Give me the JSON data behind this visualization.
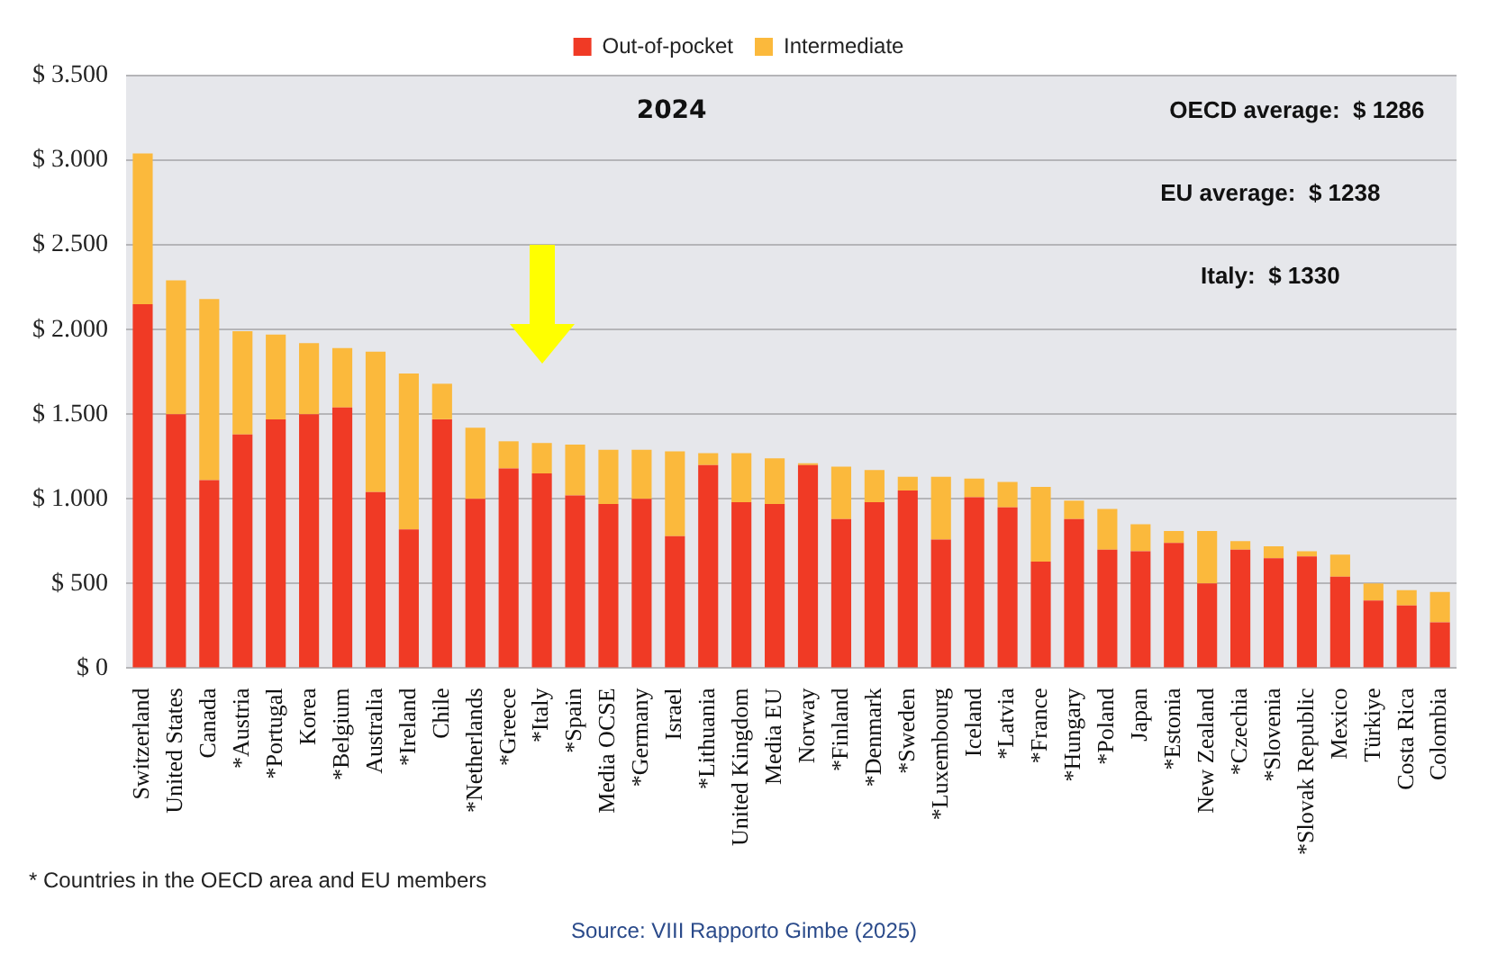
{
  "chart_data": {
    "type": "bar",
    "stacked": true,
    "legend": "top",
    "grid": "y",
    "categories": [
      "Switzerland",
      "United States",
      "Canada",
      "*Austria",
      "*Portugal",
      "Korea",
      "*Belgium",
      "Australia",
      "*Ireland",
      "Chile",
      "*Netherlands",
      "*Greece",
      "*Italy",
      "*Spain",
      "Media OCSE",
      "*Germany",
      "Israel",
      "*Lithuania",
      "United Kingdom",
      "Media EU",
      "Norway",
      "*Finland",
      "*Denmark",
      "*Sweden",
      "*Luxembourg",
      "Iceland",
      "*Latvia",
      "*France",
      "*Hungary",
      "*Poland",
      "Japan",
      "*Estonia",
      "New Zealand",
      "*Czechia",
      "*Slovenia",
      "*Slovak Republic",
      "Mexico",
      "Türkiye",
      "Costa Rica",
      "Colombia"
    ],
    "series": [
      {
        "name": "Out-of-pocket",
        "color": "#f03a25",
        "values": [
          2150,
          1500,
          1110,
          1380,
          1470,
          1500,
          1540,
          1040,
          820,
          1470,
          1000,
          1180,
          1150,
          1020,
          970,
          1000,
          780,
          1200,
          980,
          970,
          1200,
          880,
          980,
          1050,
          760,
          1010,
          950,
          630,
          880,
          700,
          690,
          740,
          500,
          700,
          650,
          660,
          540,
          400,
          370,
          270
        ]
      },
      {
        "name": "Intermediate",
        "color": "#fbb93c",
        "values": [
          890,
          790,
          1070,
          610,
          500,
          420,
          350,
          830,
          920,
          210,
          420,
          160,
          180,
          300,
          320,
          290,
          500,
          70,
          290,
          270,
          10,
          310,
          190,
          80,
          370,
          110,
          150,
          440,
          110,
          240,
          160,
          70,
          310,
          50,
          70,
          30,
          130,
          100,
          90,
          180
        ]
      }
    ],
    "ylim": [
      0,
      3500
    ],
    "yticks": [
      {
        "value": 0,
        "label": "$ 0"
      },
      {
        "value": 500,
        "label": "$ 500"
      },
      {
        "value": 1000,
        "label": "$ 1.000"
      },
      {
        "value": 1500,
        "label": "$ 1.500"
      },
      {
        "value": 2000,
        "label": "$ 2.000"
      },
      {
        "value": 2500,
        "label": "$ 2.500"
      },
      {
        "value": 3000,
        "label": "$ 3.000"
      },
      {
        "value": 3500,
        "label": "$ 3.500"
      }
    ],
    "annotations": [
      "2024",
      "OECD average:  $ 1286",
      "EU average:  $ 1238",
      "Italy:  $ 1330",
      "* Countries in the OECD area and EU members",
      "Source: VIII Rapporto Gimbe (2025)"
    ]
  }
}
